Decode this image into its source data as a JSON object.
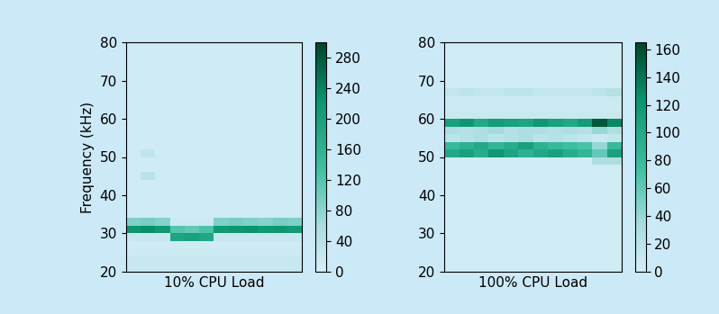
{
  "chart_data": [
    {
      "type": "heatmap",
      "xlabel": "10% CPU Load",
      "ylabel": "Frequency (kHz)",
      "tick_labels": "y",
      "ylim": [
        20,
        80
      ],
      "yticks": [
        20,
        30,
        40,
        50,
        60,
        70,
        80
      ],
      "y_bins": [
        20,
        22,
        24,
        26,
        28,
        30,
        32,
        34,
        36,
        38,
        40,
        42,
        44,
        46,
        48,
        50,
        52,
        54,
        56,
        58,
        60,
        62,
        64,
        66,
        68,
        70,
        72,
        74,
        76,
        78,
        80
      ],
      "colorbar_range": [
        0,
        300
      ],
      "colorbar_ticks": [
        0,
        40,
        80,
        120,
        160,
        200,
        240,
        280
      ],
      "cells": [
        [
          20,
          20,
          20,
          20,
          20,
          20,
          20,
          20,
          20,
          20,
          20,
          20
        ],
        [
          20,
          20,
          20,
          20,
          20,
          20,
          20,
          20,
          20,
          20,
          20,
          20
        ],
        [
          15,
          15,
          15,
          15,
          15,
          15,
          15,
          15,
          15,
          15,
          15,
          15
        ],
        [
          10,
          10,
          10,
          10,
          10,
          10,
          10,
          10,
          10,
          10,
          10,
          10
        ],
        [
          20,
          20,
          20,
          190,
          200,
          185,
          20,
          20,
          20,
          20,
          20,
          20
        ],
        [
          220,
          230,
          215,
          120,
          110,
          125,
          215,
          220,
          225,
          215,
          220,
          210
        ],
        [
          90,
          95,
          85,
          15,
          15,
          15,
          90,
          95,
          90,
          85,
          95,
          90
        ],
        [
          10,
          10,
          10,
          10,
          10,
          10,
          10,
          10,
          10,
          10,
          10,
          10
        ],
        [
          10,
          10,
          10,
          10,
          10,
          10,
          10,
          10,
          10,
          10,
          10,
          10
        ],
        [
          10,
          10,
          10,
          10,
          10,
          10,
          10,
          10,
          10,
          10,
          10,
          10
        ],
        [
          10,
          10,
          10,
          10,
          10,
          10,
          10,
          10,
          10,
          10,
          10,
          10
        ],
        [
          10,
          10,
          10,
          10,
          10,
          10,
          10,
          10,
          10,
          10,
          10,
          10
        ],
        [
          10,
          40,
          10,
          10,
          10,
          10,
          10,
          10,
          10,
          10,
          10,
          10
        ],
        [
          10,
          10,
          10,
          10,
          10,
          10,
          10,
          10,
          10,
          10,
          10,
          10
        ],
        [
          10,
          10,
          10,
          10,
          10,
          10,
          10,
          10,
          10,
          10,
          10,
          10
        ],
        [
          10,
          30,
          10,
          10,
          10,
          10,
          10,
          10,
          10,
          10,
          10,
          10
        ],
        [
          10,
          10,
          10,
          10,
          10,
          10,
          10,
          10,
          10,
          10,
          10,
          10
        ],
        [
          10,
          10,
          10,
          10,
          10,
          10,
          10,
          10,
          10,
          10,
          10,
          10
        ],
        [
          10,
          10,
          10,
          10,
          10,
          10,
          10,
          10,
          10,
          10,
          10,
          10
        ],
        [
          10,
          10,
          10,
          10,
          10,
          10,
          10,
          10,
          10,
          10,
          10,
          10
        ],
        [
          10,
          10,
          10,
          10,
          10,
          10,
          10,
          10,
          10,
          10,
          10,
          10
        ],
        [
          10,
          10,
          10,
          10,
          10,
          10,
          10,
          10,
          10,
          10,
          10,
          10
        ],
        [
          10,
          10,
          10,
          10,
          10,
          10,
          10,
          10,
          10,
          10,
          10,
          10
        ],
        [
          10,
          10,
          10,
          10,
          10,
          10,
          10,
          10,
          10,
          10,
          10,
          10
        ],
        [
          10,
          10,
          10,
          10,
          10,
          10,
          10,
          10,
          10,
          10,
          10,
          10
        ],
        [
          10,
          10,
          10,
          10,
          10,
          10,
          10,
          10,
          10,
          10,
          10,
          10
        ],
        [
          10,
          10,
          10,
          10,
          10,
          10,
          10,
          10,
          10,
          10,
          10,
          10
        ],
        [
          10,
          10,
          10,
          10,
          10,
          10,
          10,
          10,
          10,
          10,
          10,
          10
        ],
        [
          10,
          10,
          10,
          10,
          10,
          10,
          10,
          10,
          10,
          10,
          10,
          10
        ],
        [
          10,
          10,
          10,
          10,
          10,
          10,
          10,
          10,
          10,
          10,
          10,
          10
        ]
      ]
    },
    {
      "type": "heatmap",
      "xlabel": "100% CPU Load",
      "tick_labels": "y",
      "ylim": [
        20,
        80
      ],
      "yticks": [
        20,
        30,
        40,
        50,
        60,
        70,
        80
      ],
      "y_bins": [
        20,
        22,
        24,
        26,
        28,
        30,
        32,
        34,
        36,
        38,
        40,
        42,
        44,
        46,
        48,
        50,
        52,
        54,
        56,
        58,
        60,
        62,
        64,
        66,
        68,
        70,
        72,
        74,
        76,
        78,
        80
      ],
      "colorbar_range": [
        0,
        165
      ],
      "colorbar_ticks": [
        0,
        20,
        40,
        60,
        80,
        100,
        120,
        140,
        160
      ],
      "cells": [
        [
          5,
          5,
          5,
          5,
          5,
          5,
          5,
          5,
          5,
          5,
          5,
          5
        ],
        [
          5,
          5,
          5,
          5,
          5,
          5,
          5,
          5,
          5,
          5,
          5,
          5
        ],
        [
          5,
          5,
          5,
          5,
          5,
          5,
          5,
          5,
          5,
          5,
          5,
          5
        ],
        [
          5,
          5,
          5,
          5,
          5,
          5,
          5,
          5,
          5,
          5,
          5,
          5
        ],
        [
          5,
          5,
          5,
          5,
          5,
          5,
          5,
          5,
          5,
          5,
          5,
          5
        ],
        [
          5,
          5,
          5,
          5,
          5,
          5,
          5,
          5,
          5,
          5,
          5,
          5
        ],
        [
          5,
          5,
          5,
          5,
          5,
          5,
          5,
          5,
          5,
          5,
          5,
          5
        ],
        [
          5,
          5,
          5,
          5,
          5,
          5,
          5,
          5,
          5,
          5,
          5,
          5
        ],
        [
          5,
          5,
          5,
          5,
          5,
          5,
          5,
          5,
          5,
          5,
          5,
          5
        ],
        [
          5,
          5,
          5,
          5,
          5,
          5,
          5,
          5,
          5,
          5,
          5,
          5
        ],
        [
          5,
          5,
          5,
          5,
          5,
          5,
          5,
          5,
          5,
          5,
          5,
          5
        ],
        [
          5,
          5,
          5,
          5,
          5,
          5,
          5,
          5,
          5,
          5,
          5,
          5
        ],
        [
          5,
          5,
          5,
          5,
          5,
          5,
          5,
          5,
          5,
          5,
          5,
          5
        ],
        [
          5,
          5,
          5,
          5,
          5,
          5,
          5,
          5,
          5,
          5,
          5,
          5
        ],
        [
          5,
          5,
          5,
          5,
          5,
          5,
          5,
          5,
          5,
          5,
          30,
          30
        ],
        [
          100,
          110,
          95,
          120,
          105,
          90,
          100,
          110,
          95,
          85,
          60,
          110
        ],
        [
          80,
          90,
          100,
          85,
          95,
          110,
          90,
          80,
          75,
          70,
          40,
          80
        ],
        [
          20,
          25,
          30,
          20,
          25,
          30,
          20,
          25,
          20,
          15,
          10,
          15
        ],
        [
          30,
          25,
          30,
          35,
          25,
          30,
          30,
          25,
          30,
          25,
          40,
          30
        ],
        [
          110,
          120,
          100,
          115,
          110,
          105,
          120,
          110,
          100,
          115,
          155,
          130
        ],
        [
          10,
          10,
          10,
          10,
          10,
          10,
          10,
          10,
          10,
          10,
          10,
          10
        ],
        [
          8,
          8,
          8,
          8,
          8,
          8,
          8,
          8,
          8,
          8,
          8,
          8
        ],
        [
          8,
          8,
          8,
          8,
          8,
          8,
          8,
          8,
          8,
          8,
          8,
          8
        ],
        [
          15,
          20,
          15,
          15,
          20,
          20,
          15,
          15,
          15,
          15,
          20,
          25
        ],
        [
          5,
          5,
          5,
          5,
          5,
          5,
          5,
          5,
          5,
          5,
          5,
          5
        ],
        [
          5,
          5,
          5,
          5,
          5,
          5,
          5,
          5,
          5,
          5,
          5,
          5
        ],
        [
          5,
          5,
          5,
          5,
          5,
          5,
          5,
          5,
          5,
          5,
          5,
          5
        ],
        [
          5,
          5,
          5,
          5,
          5,
          5,
          5,
          5,
          5,
          5,
          5,
          5
        ],
        [
          5,
          5,
          5,
          5,
          5,
          5,
          5,
          5,
          5,
          5,
          5,
          5
        ],
        [
          5,
          5,
          5,
          5,
          5,
          5,
          5,
          5,
          5,
          5,
          5,
          5
        ]
      ]
    }
  ]
}
